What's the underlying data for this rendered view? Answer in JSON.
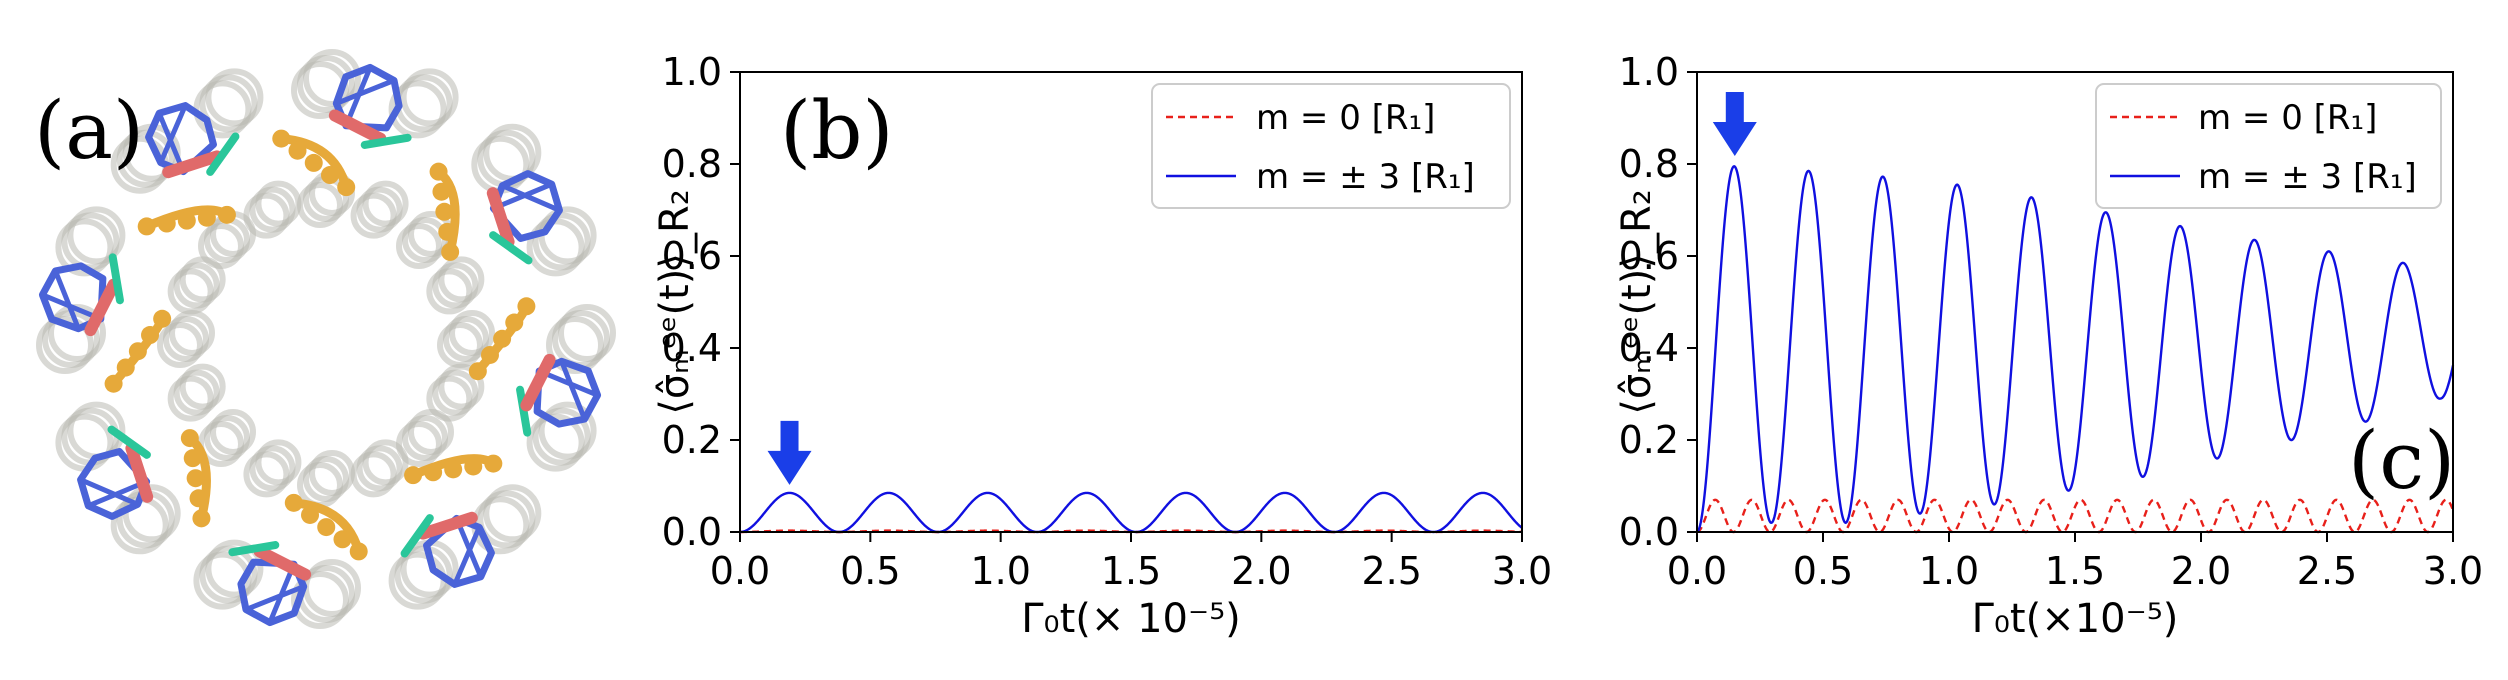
{
  "panels": {
    "a": {
      "label": "(a)"
    },
    "b": {
      "label": "(b)"
    },
    "c": {
      "label": "(c)"
    }
  },
  "colors": {
    "red": "#e8201a",
    "blue": "#1010e0",
    "arrow": "#1a3ee8",
    "pigment_blue": "#4a63d8",
    "pigment_gold": "#e6a93a",
    "linker_red": "#e06a6a",
    "linker_green": "#2ac69a",
    "helix_gray": "#b9bab2"
  },
  "chart_data": [
    {
      "panel": "b",
      "type": "line",
      "xlabel": "Γ₀t(× 10⁻⁵)",
      "ylabel": "⟨σ̂ₘᵉᵉ(t)⟩_R₂",
      "xlim": [
        0.0,
        3.0
      ],
      "ylim": [
        0.0,
        1.0
      ],
      "xticks": [
        "0.0",
        "0.5",
        "1.0",
        "1.5",
        "2.0",
        "2.5",
        "3.0"
      ],
      "yticks": [
        "0.0",
        "0.2",
        "0.4",
        "0.6",
        "0.8",
        "1.0"
      ],
      "legend_position": "top-right",
      "series": [
        {
          "name": "m = 0 [R₁]",
          "style": "dashed",
          "color": "red",
          "amplitude": 0.003,
          "period": 0.38,
          "peak": 0.003,
          "decay": 0.0
        },
        {
          "name": "m = ± 3 [R₁]",
          "style": "solid",
          "color": "blue",
          "amplitude": 0.085,
          "period": 0.38,
          "peak": 0.085,
          "decay": 0.0
        }
      ],
      "annotation": {
        "type": "arrow",
        "points_to_x": 0.19,
        "points_to_y": 0.085
      }
    },
    {
      "panel": "c",
      "type": "line",
      "xlabel": "Γ₀t(×10⁻⁵)",
      "ylabel": "⟨σ̂ₘᵉᵉ(t)⟩_R₂",
      "xlim": [
        0.0,
        3.0
      ],
      "ylim": [
        0.0,
        1.0
      ],
      "xticks": [
        "0.0",
        "0.5",
        "1.0",
        "1.5",
        "2.0",
        "2.5",
        "3.0"
      ],
      "yticks": [
        "0.0",
        "0.2",
        "0.4",
        "0.6",
        "0.8",
        "1.0"
      ],
      "legend_position": "top-right",
      "series": [
        {
          "name": "m = 0 [R₁]",
          "style": "dashed",
          "color": "red",
          "model": "sin_squared",
          "period": 0.145,
          "peak": 0.07
        },
        {
          "name": "m = ± 3 [R₁]",
          "style": "solid",
          "color": "blue",
          "model": "decaying_oscillation",
          "period": 0.295,
          "peaks": [
            0.8,
            0.79,
            0.78,
            0.765,
            0.745,
            0.71,
            0.68,
            0.65,
            0.62,
            0.6,
            0.57
          ],
          "minima": [
            0.0,
            0.02,
            0.02,
            0.04,
            0.06,
            0.09,
            0.12,
            0.16,
            0.2,
            0.24,
            0.29
          ]
        }
      ],
      "annotation": {
        "type": "arrow",
        "points_to_x": 0.15,
        "points_to_y": 0.8
      }
    }
  ]
}
